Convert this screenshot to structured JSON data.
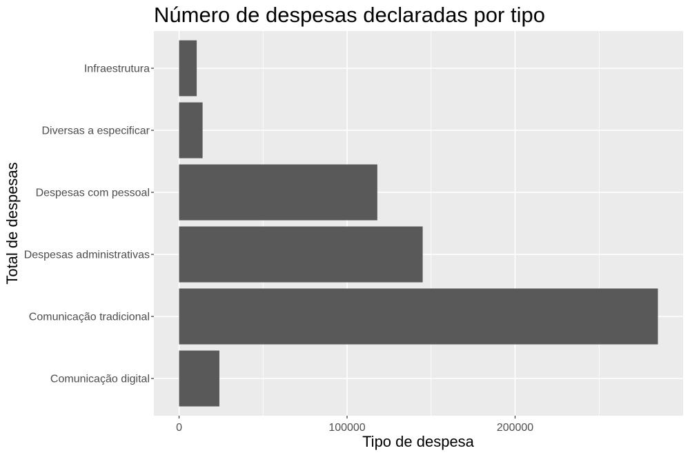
{
  "chart_data": {
    "type": "bar",
    "orientation": "horizontal",
    "title": "Número de despesas declaradas por tipo",
    "xlabel": "Tipo de despesa",
    "ylabel": "Total de despesas",
    "categories": [
      "Comunicação digital",
      "Comunicação tradicional",
      "Despesas administrativas",
      "Despesas com pessoal",
      "Diversas a especificar",
      "Infraestrutura"
    ],
    "values": [
      24000,
      285000,
      145000,
      118000,
      14000,
      10500
    ],
    "xlim": [
      -15000,
      300000
    ],
    "xticks": [
      0,
      100000,
      200000
    ],
    "xtick_labels": [
      "0",
      "100000",
      "200000"
    ],
    "grid": true,
    "colors": {
      "bar": "#595959",
      "panel": "#ebebeb",
      "grid": "#ffffff",
      "tick": "#333333"
    }
  }
}
